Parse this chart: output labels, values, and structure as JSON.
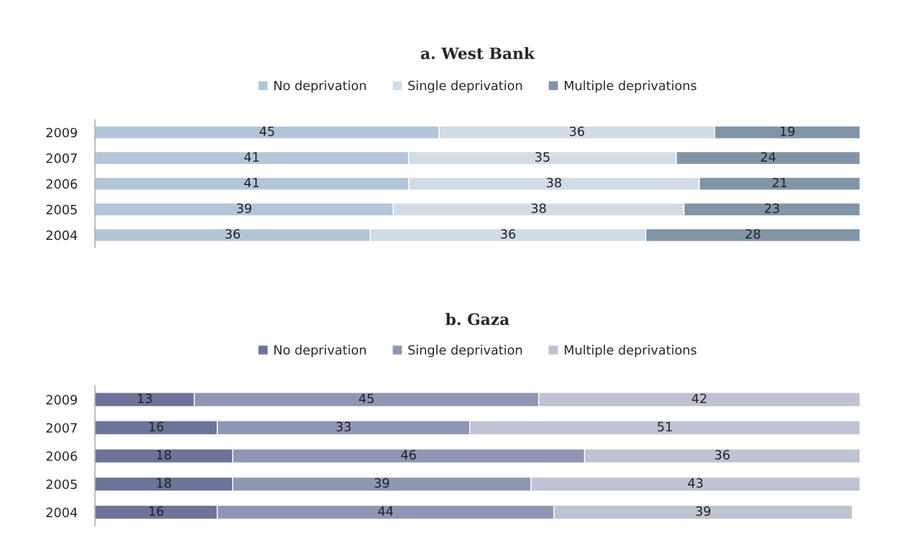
{
  "chart_data": [
    {
      "type": "bar",
      "title": "a. West Bank",
      "orientation": "horizontal",
      "stacked": true,
      "data_labels": true,
      "legend": "top",
      "tick_labels": "y",
      "grid": false,
      "categories": [
        "2009",
        "2007",
        "2006",
        "2005",
        "2004"
      ],
      "series": [
        {
          "name": "No deprivation",
          "color": "#b3c6d9",
          "values": [
            45,
            41,
            41,
            39,
            36
          ]
        },
        {
          "name": "Single deprivation",
          "color": "#d2dce7",
          "values": [
            36,
            35,
            38,
            38,
            36
          ]
        },
        {
          "name": "Multiple deprivations",
          "color": "#8195a7",
          "values": [
            19,
            24,
            21,
            23,
            28
          ]
        }
      ]
    },
    {
      "type": "bar",
      "title": "b. Gaza",
      "orientation": "horizontal",
      "stacked": true,
      "data_labels": true,
      "legend": "top",
      "tick_labels": "y",
      "grid": false,
      "categories": [
        "2009",
        "2007",
        "2006",
        "2005",
        "2004"
      ],
      "series": [
        {
          "name": "No deprivation",
          "color": "#6c7499",
          "values": [
            13,
            16,
            18,
            18,
            16
          ]
        },
        {
          "name": "Single deprivation",
          "color": "#8f96b4",
          "values": [
            45,
            33,
            46,
            39,
            44
          ]
        },
        {
          "name": "Multiple deprivations",
          "color": "#bfc2d3",
          "values": [
            42,
            51,
            36,
            43,
            39
          ]
        }
      ]
    }
  ]
}
